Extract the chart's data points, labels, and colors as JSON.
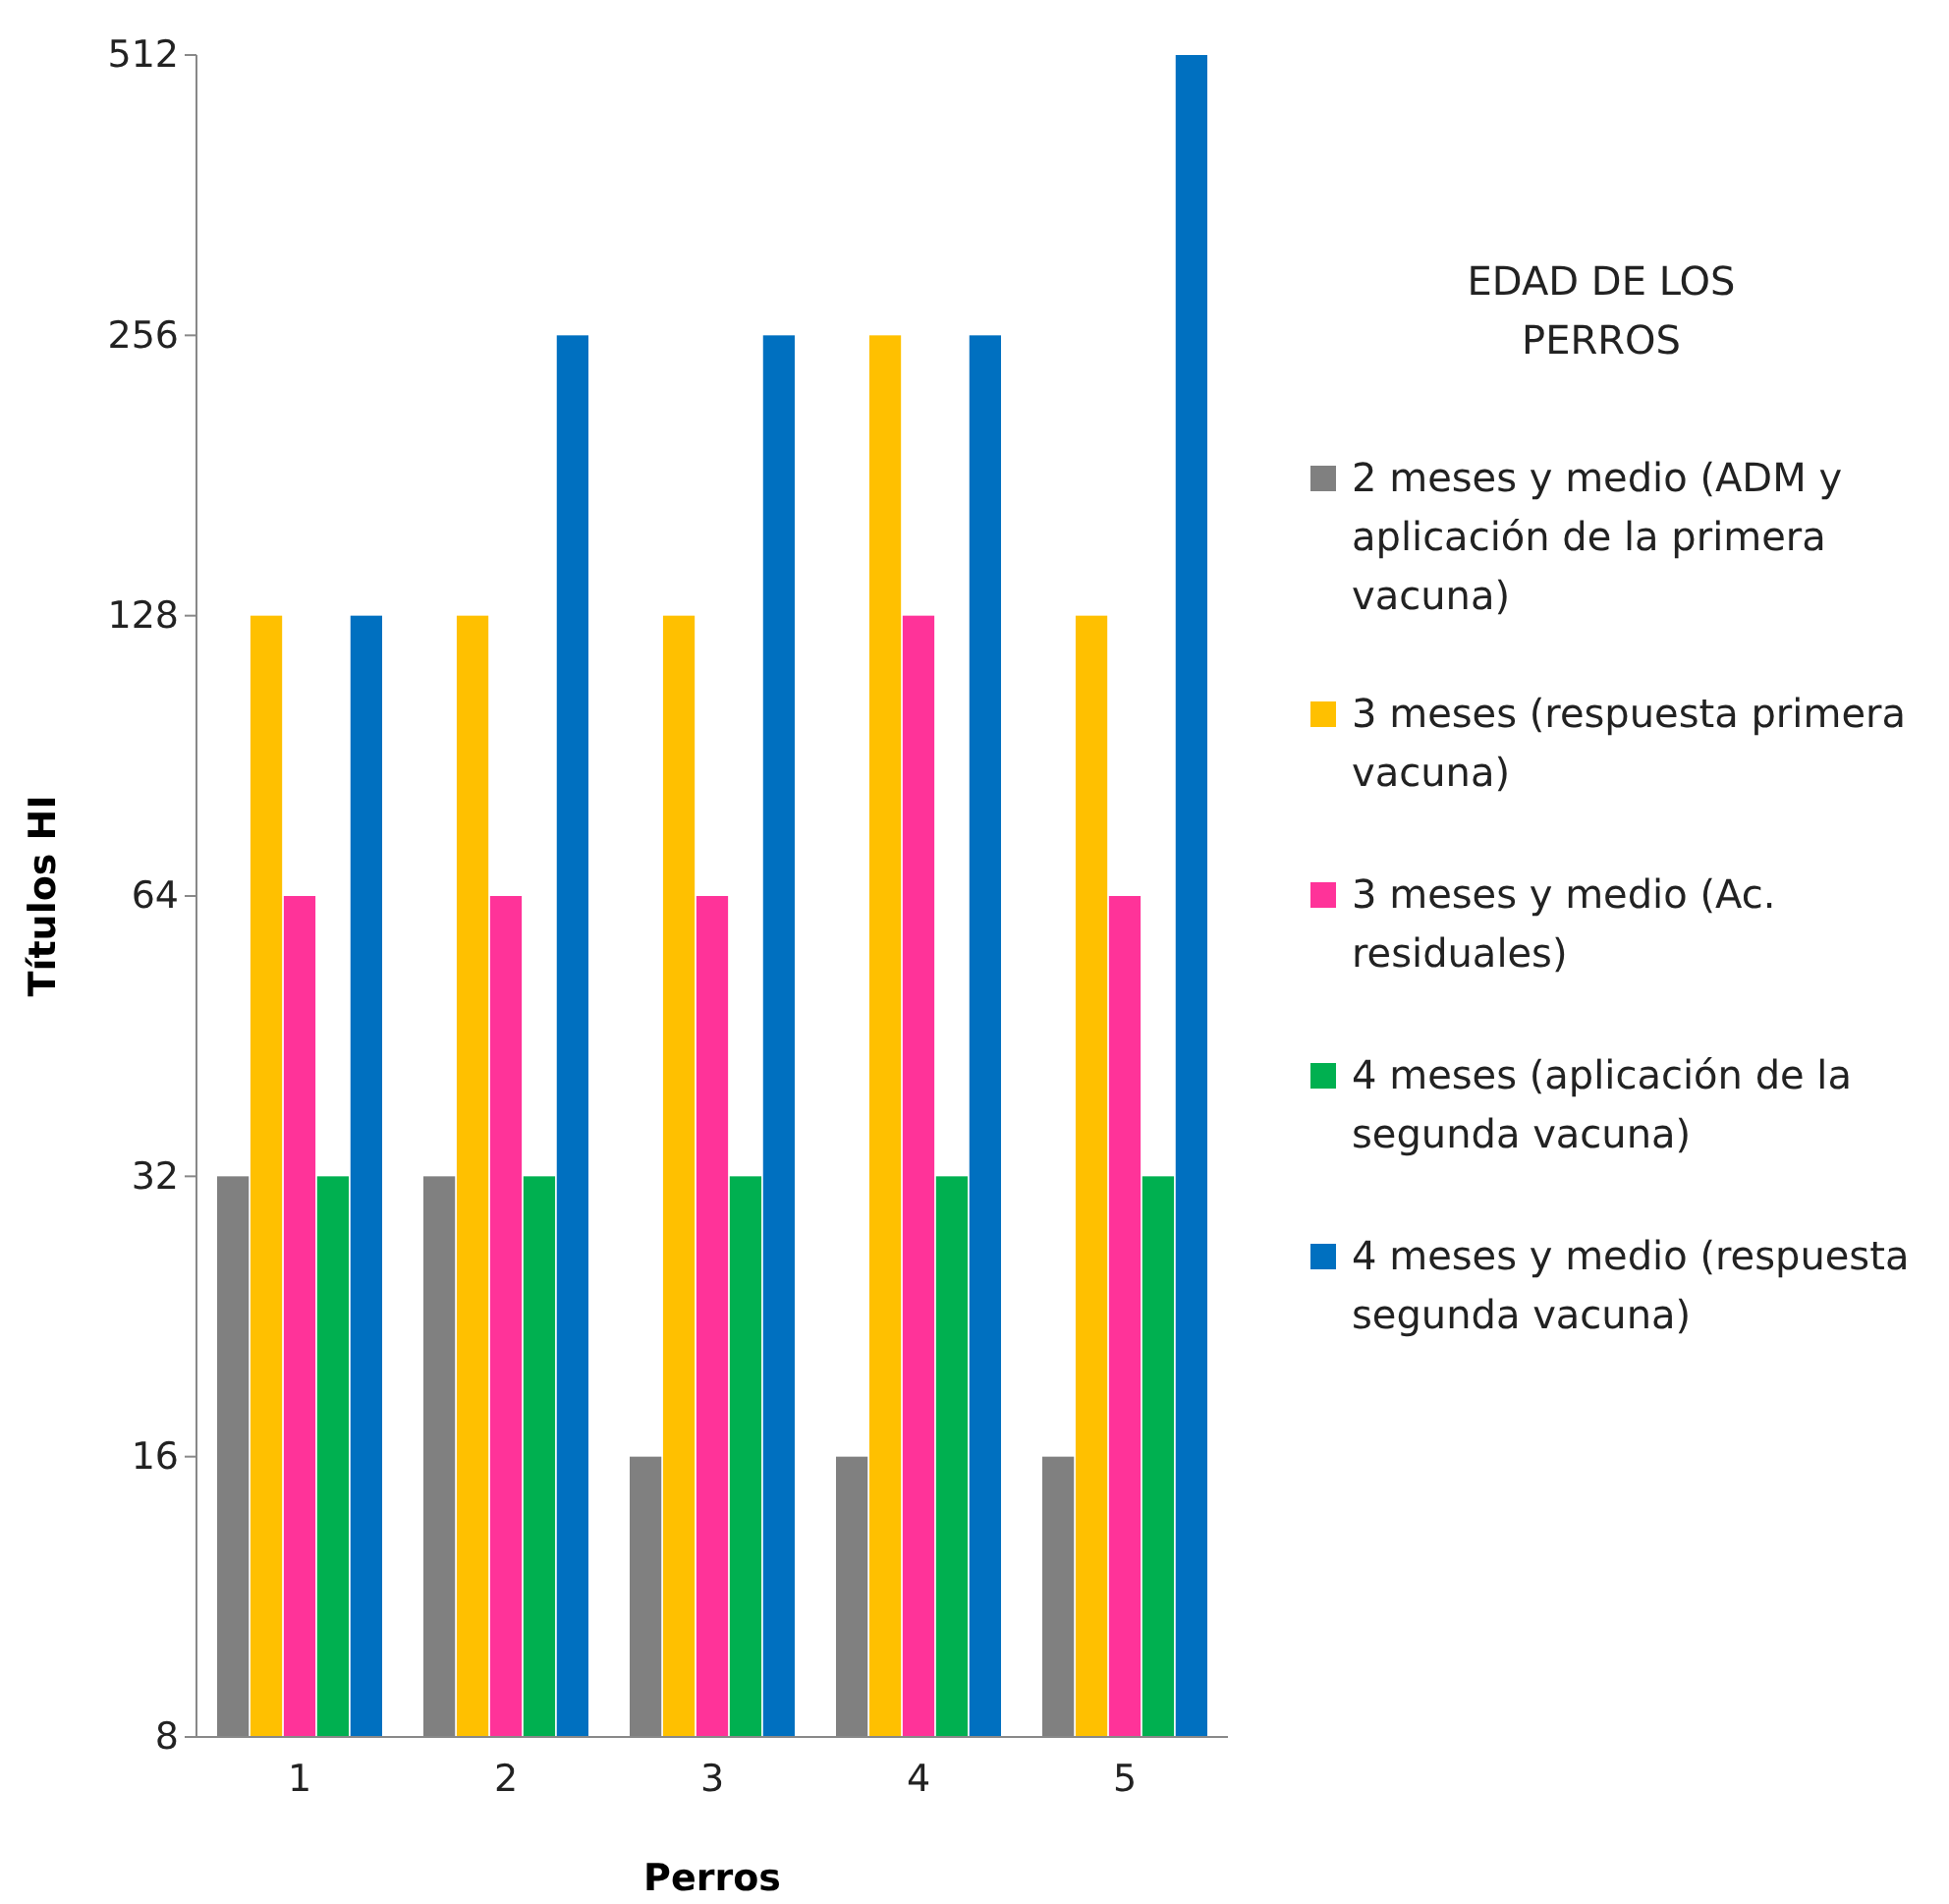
{
  "chart_data": {
    "type": "bar",
    "xlabel": "Perros",
    "ylabel": "Títulos HI",
    "legend_title": "EDAD DE LOS PERROS",
    "categories": [
      "1",
      "2",
      "3",
      "4",
      "5"
    ],
    "log": true,
    "ylim": [
      8,
      512
    ],
    "yticks": [
      8,
      16,
      32,
      64,
      128,
      256,
      512
    ],
    "grid": false,
    "legend": "right",
    "series": [
      {
        "name": "2 meses y medio (ADM y aplicación de la primera vacuna)",
        "color": "#808080",
        "values": [
          32,
          32,
          16,
          16,
          16
        ]
      },
      {
        "name": "3 meses (respuesta primera vacuna)",
        "color": "#ffc000",
        "values": [
          128,
          128,
          128,
          256,
          128
        ]
      },
      {
        "name": "3 meses y medio (Ac. residuales)",
        "color": "#ff3399",
        "values": [
          64,
          64,
          64,
          128,
          64
        ]
      },
      {
        "name": "4 meses (aplicación de la segunda vacuna)",
        "color": "#00b050",
        "values": [
          32,
          32,
          32,
          32,
          32
        ]
      },
      {
        "name": "4 meses y medio (respuesta segunda vacuna)",
        "color": "#0070c0",
        "values": [
          128,
          256,
          256,
          256,
          512
        ]
      }
    ]
  }
}
